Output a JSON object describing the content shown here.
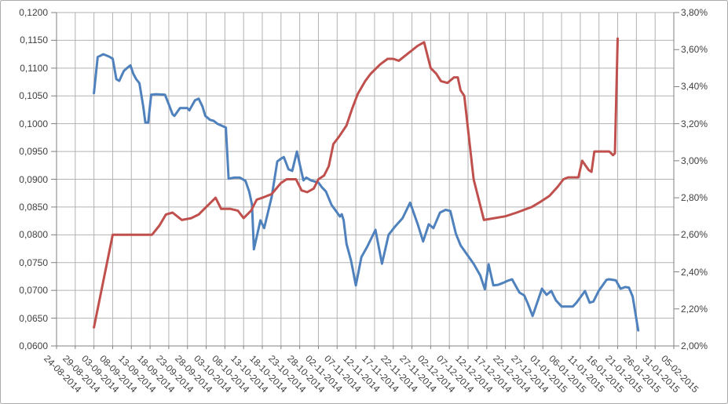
{
  "window": {
    "background": "#ffffff",
    "border_color": "#ababab"
  },
  "chart_data": {
    "type": "line",
    "title": "",
    "legend": "none",
    "grid": true,
    "x_axis": {
      "label_rotation_deg": 45,
      "labels": [
        "24-08-2014",
        "29-08-2014",
        "03-09-2014",
        "08-09-2014",
        "13-09-2014",
        "18-09-2014",
        "23-09-2014",
        "28-09-2014",
        "03-10-2014",
        "08-10-2014",
        "13-10-2014",
        "18-10-2014",
        "23-10-2014",
        "28-10-2014",
        "02-11-2014",
        "07-11-2014",
        "12-11-2014",
        "17-11-2014",
        "22-11-2014",
        "27-11-2014",
        "02-12-2014",
        "07-12-2014",
        "12-12-2014",
        "17-12-2014",
        "22-12-2014",
        "27-12-2014",
        "01-01-2015",
        "06-01-2015",
        "11-01-2015",
        "16-01-2015",
        "21-01-2015",
        "26-01-2015",
        "31-01-2015",
        "05-02-2015"
      ]
    },
    "y_axis_left": {
      "min": 0.06,
      "max": 0.12,
      "step": 0.005,
      "tick_labels": [
        "0,1200",
        "0,1150",
        "0,1100",
        "0,1050",
        "0,1000",
        "0,0950",
        "0,0900",
        "0,0850",
        "0,0800",
        "0,0750",
        "0,0700",
        "0,0650",
        "0,0600"
      ]
    },
    "y_axis_right": {
      "min": 2.0,
      "max": 3.8,
      "step": 0.2,
      "tick_labels": [
        "3,80%",
        "3,60%",
        "3,40%",
        "3,20%",
        "3,00%",
        "2,80%",
        "2,60%",
        "2,40%",
        "2,20%",
        "2,00%"
      ]
    },
    "colors": {
      "gridline": "#b2b2b2",
      "axis": "#808080",
      "blue_series": "#4F81BD",
      "red_series": "#C0504D"
    },
    "series": [
      {
        "name": "blue-price-series",
        "axis": "left",
        "color": "#4F81BD",
        "points": [
          [
            2.0,
            0.1055
          ],
          [
            2.2,
            0.112
          ],
          [
            2.5,
            0.1125
          ],
          [
            2.8,
            0.1121
          ],
          [
            3.0,
            0.1117
          ],
          [
            3.2,
            0.108
          ],
          [
            3.35,
            0.1077
          ],
          [
            3.6,
            0.1095
          ],
          [
            3.8,
            0.1101
          ],
          [
            3.95,
            0.1105
          ],
          [
            4.1,
            0.109
          ],
          [
            4.26,
            0.108
          ],
          [
            4.43,
            0.1073
          ],
          [
            4.64,
            0.103
          ],
          [
            4.75,
            0.1002
          ],
          [
            4.9,
            0.1002
          ],
          [
            5.06,
            0.1052
          ],
          [
            5.3,
            0.1053
          ],
          [
            5.8,
            0.1052
          ],
          [
            6.0,
            0.1035
          ],
          [
            6.2,
            0.1017
          ],
          [
            6.3,
            0.1014
          ],
          [
            6.6,
            0.1028
          ],
          [
            7.0,
            0.1028
          ],
          [
            7.1,
            0.1024
          ],
          [
            7.4,
            0.1042
          ],
          [
            7.6,
            0.1045
          ],
          [
            7.8,
            0.1031
          ],
          [
            7.95,
            0.1014
          ],
          [
            8.2,
            0.1007
          ],
          [
            8.4,
            0.1005
          ],
          [
            8.6,
            0.1
          ],
          [
            9.05,
            0.0993
          ],
          [
            9.2,
            0.0901
          ],
          [
            9.5,
            0.0903
          ],
          [
            9.8,
            0.0903
          ],
          [
            10.1,
            0.0897
          ],
          [
            10.3,
            0.0878
          ],
          [
            10.45,
            0.0854
          ],
          [
            10.55,
            0.0774
          ],
          [
            10.9,
            0.0826
          ],
          [
            11.1,
            0.0812
          ],
          [
            11.5,
            0.0868
          ],
          [
            11.8,
            0.0932
          ],
          [
            12.0,
            0.0937
          ],
          [
            12.15,
            0.094
          ],
          [
            12.4,
            0.0918
          ],
          [
            12.6,
            0.0915
          ],
          [
            12.85,
            0.095
          ],
          [
            13.05,
            0.092
          ],
          [
            13.2,
            0.0898
          ],
          [
            13.35,
            0.0903
          ],
          [
            13.6,
            0.0898
          ],
          [
            14.0,
            0.0894
          ],
          [
            14.2,
            0.0885
          ],
          [
            14.4,
            0.0878
          ],
          [
            14.7,
            0.0854
          ],
          [
            15.0,
            0.084
          ],
          [
            15.15,
            0.0833
          ],
          [
            15.25,
            0.0837
          ],
          [
            15.35,
            0.0826
          ],
          [
            15.5,
            0.0784
          ],
          [
            15.75,
            0.0753
          ],
          [
            16.0,
            0.0709
          ],
          [
            16.3,
            0.076
          ],
          [
            16.6,
            0.0778
          ],
          [
            17.05,
            0.0809
          ],
          [
            17.4,
            0.0748
          ],
          [
            17.75,
            0.08
          ],
          [
            18.1,
            0.0815
          ],
          [
            18.5,
            0.083
          ],
          [
            18.9,
            0.0858
          ],
          [
            19.3,
            0.082
          ],
          [
            19.6,
            0.0788
          ],
          [
            19.9,
            0.0819
          ],
          [
            20.15,
            0.0812
          ],
          [
            20.5,
            0.084
          ],
          [
            20.8,
            0.0845
          ],
          [
            21.05,
            0.0843
          ],
          [
            21.35,
            0.0802
          ],
          [
            21.6,
            0.0781
          ],
          [
            22.0,
            0.0762
          ],
          [
            22.3,
            0.0748
          ],
          [
            22.65,
            0.0727
          ],
          [
            22.9,
            0.0702
          ],
          [
            23.1,
            0.0747
          ],
          [
            23.35,
            0.0709
          ],
          [
            23.6,
            0.071
          ],
          [
            23.9,
            0.0714
          ],
          [
            24.1,
            0.0717
          ],
          [
            24.35,
            0.072
          ],
          [
            24.6,
            0.0705
          ],
          [
            24.75,
            0.0696
          ],
          [
            25.0,
            0.0691
          ],
          [
            25.2,
            0.0676
          ],
          [
            25.45,
            0.0654
          ],
          [
            25.95,
            0.0703
          ],
          [
            26.2,
            0.0692
          ],
          [
            26.45,
            0.0699
          ],
          [
            26.7,
            0.0682
          ],
          [
            27.0,
            0.0671
          ],
          [
            27.6,
            0.0671
          ],
          [
            27.8,
            0.0678
          ],
          [
            28.25,
            0.0699
          ],
          [
            28.5,
            0.0678
          ],
          [
            28.7,
            0.068
          ],
          [
            29.0,
            0.07
          ],
          [
            29.4,
            0.0719
          ],
          [
            29.55,
            0.072
          ],
          [
            29.9,
            0.0718
          ],
          [
            30.15,
            0.0703
          ],
          [
            30.4,
            0.0706
          ],
          [
            30.6,
            0.0705
          ],
          [
            30.8,
            0.0689
          ],
          [
            31.1,
            0.0628
          ]
        ]
      },
      {
        "name": "red-percent-series",
        "axis": "right",
        "color": "#C0504D",
        "points": [
          [
            2.0,
            2.1
          ],
          [
            3.0,
            2.6
          ],
          [
            5.1,
            2.6
          ],
          [
            5.5,
            2.65
          ],
          [
            5.85,
            2.71
          ],
          [
            6.2,
            2.72
          ],
          [
            6.7,
            2.68
          ],
          [
            7.2,
            2.69
          ],
          [
            7.6,
            2.71
          ],
          [
            8.0,
            2.75
          ],
          [
            8.5,
            2.8
          ],
          [
            8.8,
            2.74
          ],
          [
            9.3,
            2.74
          ],
          [
            9.7,
            2.73
          ],
          [
            10.0,
            2.69
          ],
          [
            10.4,
            2.73
          ],
          [
            10.7,
            2.79
          ],
          [
            11.0,
            2.8
          ],
          [
            11.5,
            2.82
          ],
          [
            12.0,
            2.88
          ],
          [
            12.3,
            2.9
          ],
          [
            12.8,
            2.9
          ],
          [
            13.1,
            2.84
          ],
          [
            13.4,
            2.83
          ],
          [
            13.75,
            2.85
          ],
          [
            14.0,
            2.9
          ],
          [
            14.3,
            2.92
          ],
          [
            14.55,
            2.97
          ],
          [
            14.8,
            3.09
          ],
          [
            15.1,
            3.13
          ],
          [
            15.5,
            3.19
          ],
          [
            15.8,
            3.28
          ],
          [
            16.1,
            3.36
          ],
          [
            16.5,
            3.43
          ],
          [
            16.8,
            3.47
          ],
          [
            17.3,
            3.52
          ],
          [
            17.7,
            3.55
          ],
          [
            18.0,
            3.55
          ],
          [
            18.3,
            3.54
          ],
          [
            18.8,
            3.58
          ],
          [
            19.3,
            3.62
          ],
          [
            19.65,
            3.64
          ],
          [
            20.0,
            3.5
          ],
          [
            20.3,
            3.47
          ],
          [
            20.55,
            3.43
          ],
          [
            20.9,
            3.42
          ],
          [
            21.25,
            3.45
          ],
          [
            21.45,
            3.45
          ],
          [
            21.6,
            3.38
          ],
          [
            21.8,
            3.35
          ],
          [
            22.3,
            2.9
          ],
          [
            22.85,
            2.68
          ],
          [
            23.4,
            2.69
          ],
          [
            24.0,
            2.7
          ],
          [
            24.6,
            2.72
          ],
          [
            25.4,
            2.75
          ],
          [
            25.9,
            2.78
          ],
          [
            26.35,
            2.81
          ],
          [
            26.8,
            2.86
          ],
          [
            27.1,
            2.9
          ],
          [
            27.35,
            2.91
          ],
          [
            27.9,
            2.91
          ],
          [
            28.1,
            3.0
          ],
          [
            28.45,
            2.95
          ],
          [
            28.6,
            2.94
          ],
          [
            28.75,
            3.05
          ],
          [
            29.1,
            3.05
          ],
          [
            29.55,
            3.05
          ],
          [
            29.75,
            3.03
          ],
          [
            29.85,
            3.04
          ],
          [
            30.0,
            3.66
          ]
        ]
      }
    ]
  }
}
